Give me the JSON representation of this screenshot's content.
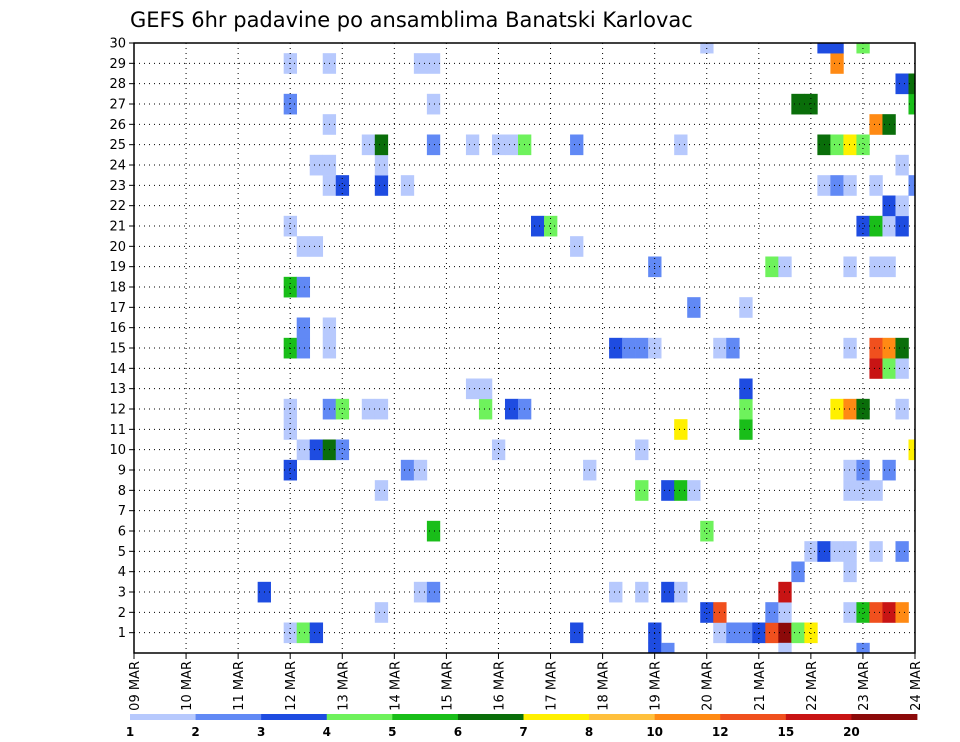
{
  "chart_data": {
    "type": "heatmap",
    "title": "GEFS 6hr padavine po ansamblima Banatski Karlovac",
    "xlabel": "",
    "ylabel": "",
    "x_ticks": [
      "09 MAR",
      "10 MAR",
      "11 MAR",
      "12 MAR",
      "13 MAR",
      "14 MAR",
      "15 MAR",
      "16 MAR",
      "17 MAR",
      "18 MAR",
      "19 MAR",
      "20 MAR",
      "21 MAR",
      "22 MAR",
      "23 MAR",
      "24 MAR"
    ],
    "x_range": [
      0,
      60
    ],
    "x_step_hours": 6,
    "y_ticks": [
      "1",
      "2",
      "3",
      "4",
      "5",
      "6",
      "7",
      "8",
      "9",
      "10",
      "11",
      "12",
      "13",
      "14",
      "15",
      "16",
      "17",
      "18",
      "19",
      "20",
      "21",
      "22",
      "23",
      "24",
      "25",
      "26",
      "27",
      "28",
      "29",
      "30"
    ],
    "y_range": [
      0,
      30
    ],
    "grid": true,
    "grid_style": "dotted",
    "colorbar": {
      "position": "bottom",
      "labels": [
        "1",
        "2",
        "3",
        "4",
        "5",
        "6",
        "7",
        "8",
        "10",
        "12",
        "15",
        "20"
      ],
      "colors": [
        "#b7c9fd",
        "#6189f5",
        "#1e4ce1",
        "#6ef25c",
        "#19be19",
        "#0a6e0a",
        "#fff000",
        "#ffc03c",
        "#ff8a14",
        "#f0501e",
        "#c81414",
        "#8c0a0a"
      ]
    },
    "cells": [
      [
        12,
        1,
        0
      ],
      [
        13,
        1,
        3
      ],
      [
        14,
        1,
        2
      ],
      [
        34,
        1,
        2
      ],
      [
        45,
        1,
        0
      ],
      [
        46,
        1,
        1
      ],
      [
        47,
        1,
        1
      ],
      [
        48,
        1,
        2
      ],
      [
        49,
        1,
        9
      ],
      [
        50,
        1,
        11
      ],
      [
        51,
        1,
        3
      ],
      [
        52,
        1,
        6
      ],
      [
        40,
        1,
        2
      ],
      [
        19,
        2,
        0
      ],
      [
        44,
        2,
        2
      ],
      [
        45,
        2,
        9
      ],
      [
        49,
        2,
        1
      ],
      [
        50,
        2,
        0
      ],
      [
        55,
        2,
        0
      ],
      [
        56,
        2,
        4
      ],
      [
        57,
        2,
        9
      ],
      [
        58,
        2,
        10
      ],
      [
        59,
        2,
        8
      ],
      [
        10,
        3,
        2
      ],
      [
        22,
        3,
        0
      ],
      [
        23,
        3,
        1
      ],
      [
        37,
        3,
        0
      ],
      [
        39,
        3,
        0
      ],
      [
        41,
        3,
        2
      ],
      [
        42,
        3,
        0
      ],
      [
        50,
        3,
        10
      ],
      [
        51,
        4,
        1
      ],
      [
        55,
        4,
        0
      ],
      [
        52,
        5,
        0
      ],
      [
        53,
        5,
        2
      ],
      [
        54,
        5,
        0
      ],
      [
        55,
        5,
        0
      ],
      [
        57,
        5,
        0
      ],
      [
        59,
        5,
        1
      ],
      [
        23,
        6,
        4
      ],
      [
        44,
        6,
        3
      ],
      [
        19,
        8,
        0
      ],
      [
        39,
        8,
        3
      ],
      [
        41,
        8,
        2
      ],
      [
        42,
        8,
        4
      ],
      [
        43,
        8,
        0
      ],
      [
        55,
        8,
        0
      ],
      [
        56,
        8,
        0
      ],
      [
        57,
        8,
        0
      ],
      [
        12,
        9,
        2
      ],
      [
        21,
        9,
        1
      ],
      [
        22,
        9,
        0
      ],
      [
        35,
        9,
        0
      ],
      [
        55,
        9,
        0
      ],
      [
        56,
        9,
        1
      ],
      [
        58,
        9,
        1
      ],
      [
        13,
        10,
        0
      ],
      [
        14,
        10,
        2
      ],
      [
        15,
        10,
        5
      ],
      [
        16,
        10,
        1
      ],
      [
        28,
        10,
        0
      ],
      [
        39,
        10,
        0
      ],
      [
        60,
        10,
        6
      ],
      [
        12,
        11,
        0
      ],
      [
        42,
        11,
        6
      ],
      [
        47,
        11,
        4
      ],
      [
        12,
        12,
        0
      ],
      [
        15,
        12,
        1
      ],
      [
        16,
        12,
        3
      ],
      [
        18,
        12,
        0
      ],
      [
        19,
        12,
        0
      ],
      [
        27,
        12,
        3
      ],
      [
        29,
        12,
        2
      ],
      [
        30,
        12,
        1
      ],
      [
        47,
        12,
        3
      ],
      [
        54,
        12,
        6
      ],
      [
        55,
        12,
        8
      ],
      [
        56,
        12,
        5
      ],
      [
        59,
        12,
        0
      ],
      [
        26,
        13,
        0
      ],
      [
        27,
        13,
        0
      ],
      [
        47,
        13,
        2
      ],
      [
        57,
        14,
        10
      ],
      [
        58,
        14,
        3
      ],
      [
        59,
        14,
        0
      ],
      [
        12,
        15,
        4
      ],
      [
        13,
        15,
        1
      ],
      [
        15,
        15,
        0
      ],
      [
        37,
        15,
        2
      ],
      [
        38,
        15,
        1
      ],
      [
        39,
        15,
        1
      ],
      [
        40,
        15,
        0
      ],
      [
        45,
        15,
        0
      ],
      [
        46,
        15,
        1
      ],
      [
        55,
        15,
        0
      ],
      [
        57,
        15,
        9
      ],
      [
        58,
        15,
        8
      ],
      [
        59,
        15,
        5
      ],
      [
        13,
        16,
        1
      ],
      [
        15,
        16,
        0
      ],
      [
        43,
        17,
        1
      ],
      [
        47,
        17,
        0
      ],
      [
        12,
        18,
        4
      ],
      [
        13,
        18,
        1
      ],
      [
        40,
        19,
        1
      ],
      [
        49,
        19,
        3
      ],
      [
        50,
        19,
        0
      ],
      [
        55,
        19,
        0
      ],
      [
        57,
        19,
        0
      ],
      [
        58,
        19,
        0
      ],
      [
        13,
        20,
        0
      ],
      [
        14,
        20,
        0
      ],
      [
        34,
        20,
        0
      ],
      [
        12,
        21,
        0
      ],
      [
        31,
        21,
        2
      ],
      [
        32,
        21,
        3
      ],
      [
        56,
        21,
        2
      ],
      [
        57,
        21,
        4
      ],
      [
        58,
        21,
        0
      ],
      [
        59,
        21,
        2
      ],
      [
        58,
        22,
        2
      ],
      [
        59,
        22,
        0
      ],
      [
        15,
        23,
        0
      ],
      [
        16,
        23,
        2
      ],
      [
        19,
        23,
        2
      ],
      [
        21,
        23,
        0
      ],
      [
        53,
        23,
        0
      ],
      [
        54,
        23,
        1
      ],
      [
        55,
        23,
        0
      ],
      [
        57,
        23,
        0
      ],
      [
        60,
        23,
        1
      ],
      [
        14,
        24,
        0
      ],
      [
        15,
        24,
        0
      ],
      [
        19,
        24,
        0
      ],
      [
        59,
        24,
        0
      ],
      [
        18,
        25,
        0
      ],
      [
        19,
        25,
        5
      ],
      [
        23,
        25,
        1
      ],
      [
        26,
        25,
        0
      ],
      [
        28,
        25,
        0
      ],
      [
        29,
        25,
        0
      ],
      [
        30,
        25,
        3
      ],
      [
        34,
        25,
        1
      ],
      [
        42,
        25,
        0
      ],
      [
        53,
        25,
        5
      ],
      [
        54,
        25,
        3
      ],
      [
        55,
        25,
        6
      ],
      [
        56,
        25,
        3
      ],
      [
        15,
        26,
        0
      ],
      [
        57,
        26,
        8
      ],
      [
        58,
        26,
        5
      ],
      [
        12,
        27,
        1
      ],
      [
        23,
        27,
        0
      ],
      [
        51,
        27,
        5
      ],
      [
        52,
        27,
        5
      ],
      [
        60,
        27,
        4
      ],
      [
        59,
        28,
        2
      ],
      [
        60,
        28,
        5
      ],
      [
        12,
        29,
        0
      ],
      [
        15,
        29,
        0
      ],
      [
        22,
        29,
        0
      ],
      [
        23,
        29,
        0
      ],
      [
        54,
        29,
        8
      ],
      [
        44,
        30,
        0
      ],
      [
        53,
        30,
        2
      ],
      [
        54,
        30,
        2
      ],
      [
        56,
        30,
        3
      ],
      [
        40,
        0,
        2
      ],
      [
        41,
        0,
        1
      ],
      [
        50,
        0,
        0
      ],
      [
        56,
        0,
        1
      ]
    ]
  }
}
